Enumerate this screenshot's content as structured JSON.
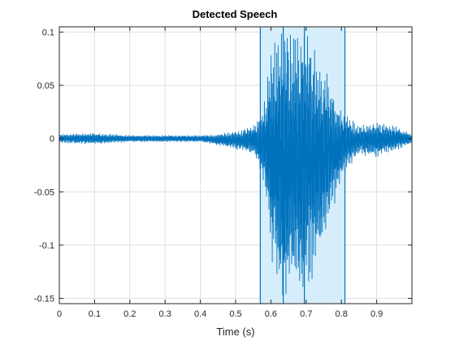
{
  "chart_data": {
    "type": "line",
    "title": "Detected Speech",
    "xlabel": "Time (s)",
    "ylabel": "",
    "xlim": [
      0,
      1.0
    ],
    "ylim": [
      -0.155,
      0.105
    ],
    "grid": true,
    "x_ticks": [
      0,
      0.1,
      0.2,
      0.3,
      0.4,
      0.5,
      0.6,
      0.7,
      0.8,
      0.9
    ],
    "x_tick_labels": [
      "0",
      "0.1",
      "0.2",
      "0.3",
      "0.4",
      "0.5",
      "0.6",
      "0.7",
      "0.8",
      "0.9"
    ],
    "y_ticks": [
      -0.15,
      -0.1,
      -0.05,
      0,
      0.05,
      0.1
    ],
    "y_tick_labels": [
      "-0.15",
      "-0.1",
      "-0.05",
      "0",
      "0.05",
      "0.1"
    ],
    "highlight_regions": [
      {
        "x_start": 0.57,
        "x_end": 0.81
      }
    ],
    "region_boundaries": [
      0.57,
      0.635,
      0.695,
      0.81
    ],
    "series": [
      {
        "color": "#0072BD",
        "envelope": {
          "t": [
            0.0,
            0.1,
            0.2,
            0.3,
            0.4,
            0.45,
            0.5,
            0.55,
            0.58,
            0.6,
            0.62,
            0.65,
            0.68,
            0.72,
            0.76,
            0.8,
            0.85,
            0.9,
            0.95,
            1.0
          ],
          "pos": [
            0.004,
            0.005,
            0.003,
            0.003,
            0.003,
            0.004,
            0.007,
            0.012,
            0.03,
            0.085,
            0.095,
            0.105,
            0.105,
            0.09,
            0.06,
            0.025,
            0.012,
            0.015,
            0.012,
            0.004
          ],
          "neg": [
            -0.004,
            -0.005,
            -0.003,
            -0.003,
            -0.003,
            -0.006,
            -0.01,
            -0.015,
            -0.04,
            -0.11,
            -0.14,
            -0.155,
            -0.15,
            -0.13,
            -0.09,
            -0.035,
            -0.015,
            -0.018,
            -0.012,
            -0.004
          ]
        }
      }
    ]
  },
  "colors": {
    "line": "#0072BD",
    "highlight_fill": "#D6EEFB",
    "highlight_edge": "#0072BD",
    "grid": "#DFDFDF",
    "axis": "#262626"
  }
}
